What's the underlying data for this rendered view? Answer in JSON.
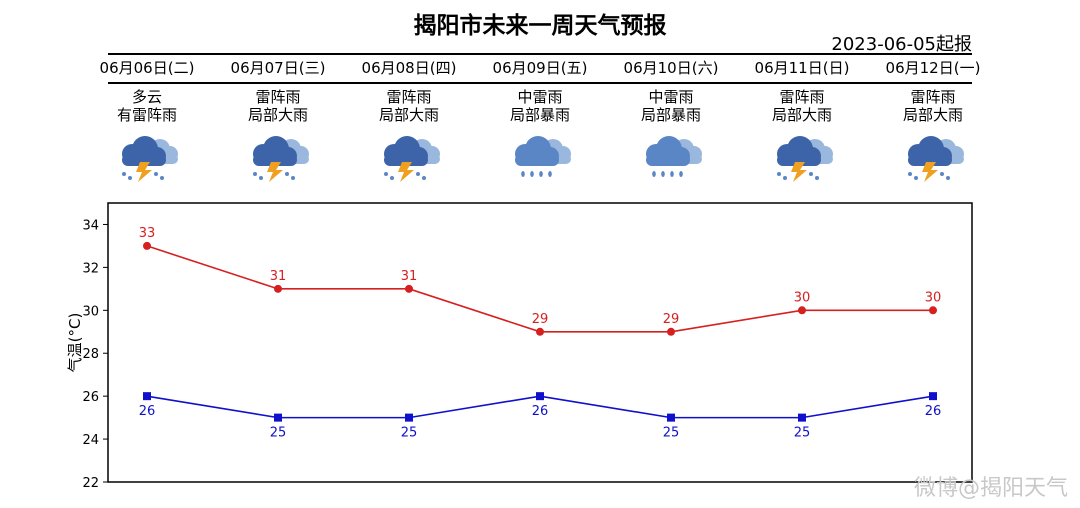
{
  "title": "揭阳市未来一周天气预报",
  "issued": "2023-06-05起报",
  "watermark": "微博@揭阳天气",
  "days": [
    {
      "date": "06月06日(二)",
      "w1": "多云",
      "w2": "有雷阵雨",
      "icon": "thunderstorm-icon"
    },
    {
      "date": "06月07日(三)",
      "w1": "雷阵雨",
      "w2": "局部大雨",
      "icon": "thunderstorm-icon"
    },
    {
      "date": "06月08日(四)",
      "w1": "雷阵雨",
      "w2": "局部大雨",
      "icon": "thunderstorm-icon"
    },
    {
      "date": "06月09日(五)",
      "w1": "中雷雨",
      "w2": "局部暴雨",
      "icon": "rain-cloud-icon"
    },
    {
      "date": "06月10日(六)",
      "w1": "中雷雨",
      "w2": "局部暴雨",
      "icon": "rain-cloud-icon"
    },
    {
      "date": "06月11日(日)",
      "w1": "雷阵雨",
      "w2": "局部大雨",
      "icon": "thunderstorm-icon"
    },
    {
      "date": "06月12日(一)",
      "w1": "雷阵雨",
      "w2": "局部大雨",
      "icon": "thunderstorm-icon"
    }
  ],
  "chart_data": {
    "type": "line",
    "ylabel": "气温(°C)",
    "ylim": [
      22,
      35
    ],
    "yticks": [
      22,
      24,
      26,
      28,
      30,
      32,
      34
    ],
    "series": [
      {
        "values": [
          33,
          31,
          31,
          29,
          29,
          30,
          30
        ],
        "color": "#d62020",
        "marker": "circle"
      },
      {
        "values": [
          26,
          25,
          25,
          26,
          25,
          25,
          26
        ],
        "color": "#1010cc",
        "marker": "square"
      }
    ]
  }
}
